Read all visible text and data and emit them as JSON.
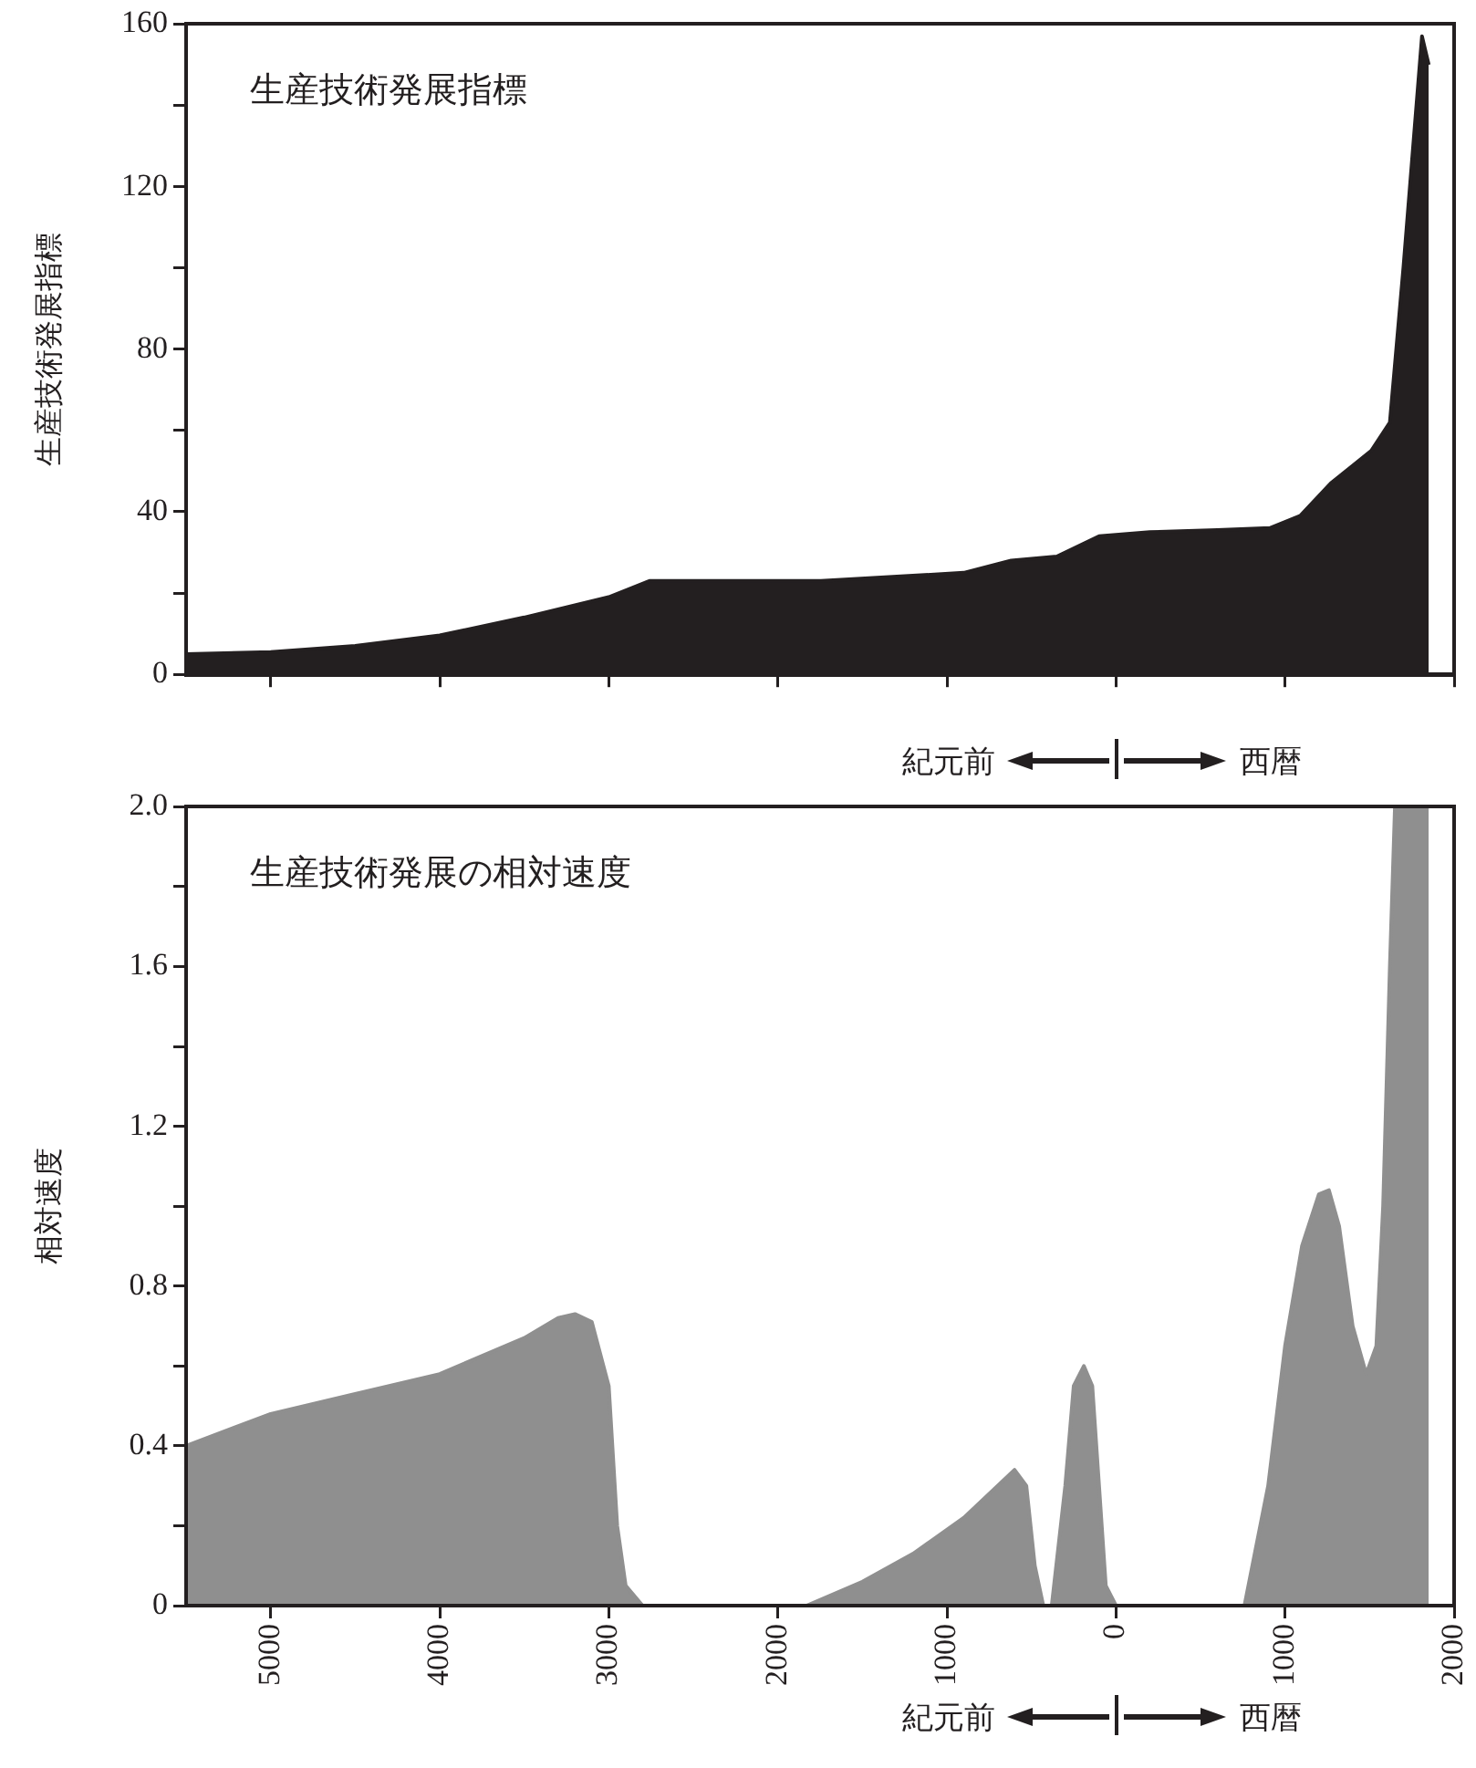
{
  "chart_data": [
    {
      "type": "area",
      "title": "生産技術発展指標",
      "ylabel": "生産技術発展指標",
      "annotations": [
        "紀元前",
        "西暦"
      ],
      "series": [
        {
          "color": "#231f20",
          "x": [
            -5500,
            -5000,
            -4500,
            -4000,
            -3500,
            -3000,
            -2760,
            -2000,
            -1745,
            -900,
            -620,
            -350,
            -100,
            200,
            600,
            910,
            1090,
            1270,
            1510,
            1620,
            1700,
            1810,
            1850
          ],
          "values": [
            5,
            5.5,
            7,
            9.6,
            14,
            19,
            23,
            23,
            23,
            25,
            28,
            29,
            34,
            35,
            35.5,
            36,
            39,
            47,
            55,
            62,
            100,
            157,
            150
          ]
        }
      ],
      "xlim": [
        -5500,
        2000
      ],
      "xticks": [
        {
          "value": -5000,
          "label": null
        },
        {
          "value": -4000,
          "label": null
        },
        {
          "value": -3000,
          "label": null
        },
        {
          "value": -2000,
          "label": null
        },
        {
          "value": -1000,
          "label": null
        },
        {
          "value": 0,
          "label": null
        },
        {
          "value": 1000,
          "label": null
        },
        {
          "value": 2000,
          "label": null
        }
      ],
      "ylim": [
        0,
        160
      ],
      "yticks": [
        0,
        {
          "value": 20,
          "label": null
        },
        40,
        {
          "value": 60,
          "label": null
        },
        80,
        {
          "value": 100,
          "label": null
        },
        120,
        {
          "value": 140,
          "label": null
        },
        160
      ],
      "tick_labels": "y"
    },
    {
      "type": "area",
      "title": "生産技術発展の相対速度",
      "ylabel": "相対速度",
      "annotations": [
        "紀元前",
        "西暦"
      ],
      "series": [
        {
          "color": "#8f8f8f",
          "x": [
            -5500,
            -5000,
            -4500,
            -4000,
            -3500,
            -3300,
            -3200,
            -3100,
            -3000,
            -2950,
            -2900,
            -2800,
            -1830,
            -1500,
            -1200,
            -900,
            -700,
            -600,
            -530,
            -480,
            -430,
            -380,
            -300,
            -250,
            -190,
            -140,
            -100,
            -60,
            0,
            760,
            900,
            1000,
            1100,
            1200,
            1260,
            1320,
            1400,
            1480,
            1540,
            1580,
            1620,
            1650,
            1850
          ],
          "values": [
            0.4,
            0.48,
            0.53,
            0.58,
            0.67,
            0.72,
            0.73,
            0.71,
            0.55,
            0.2,
            0.05,
            0,
            0,
            0.06,
            0.13,
            0.22,
            0.3,
            0.34,
            0.3,
            0.1,
            0,
            0,
            0.3,
            0.55,
            0.6,
            0.55,
            0.3,
            0.05,
            0,
            0,
            0.3,
            0.65,
            0.9,
            1.03,
            1.04,
            0.95,
            0.7,
            0.58,
            0.65,
            1,
            1.6,
            2,
            2
          ]
        }
      ],
      "xlim": [
        -5500,
        2000
      ],
      "xticks": [
        {
          "value": -5000,
          "label": "5000"
        },
        {
          "value": -4000,
          "label": "4000"
        },
        {
          "value": -3000,
          "label": "3000"
        },
        {
          "value": -2000,
          "label": "2000"
        },
        {
          "value": -1000,
          "label": "1000"
        },
        0,
        1000,
        2000
      ],
      "ylim": [
        0,
        2
      ],
      "yticks": [
        0,
        {
          "value": 0.2,
          "label": null
        },
        0.4,
        {
          "value": 0.6,
          "label": null
        },
        0.8,
        {
          "value": 1,
          "label": null
        },
        1.2,
        {
          "value": 1.4,
          "label": null
        },
        1.6,
        {
          "value": 1.8,
          "label": null
        },
        {
          "value": 2,
          "label": "2.0"
        }
      ]
    }
  ]
}
